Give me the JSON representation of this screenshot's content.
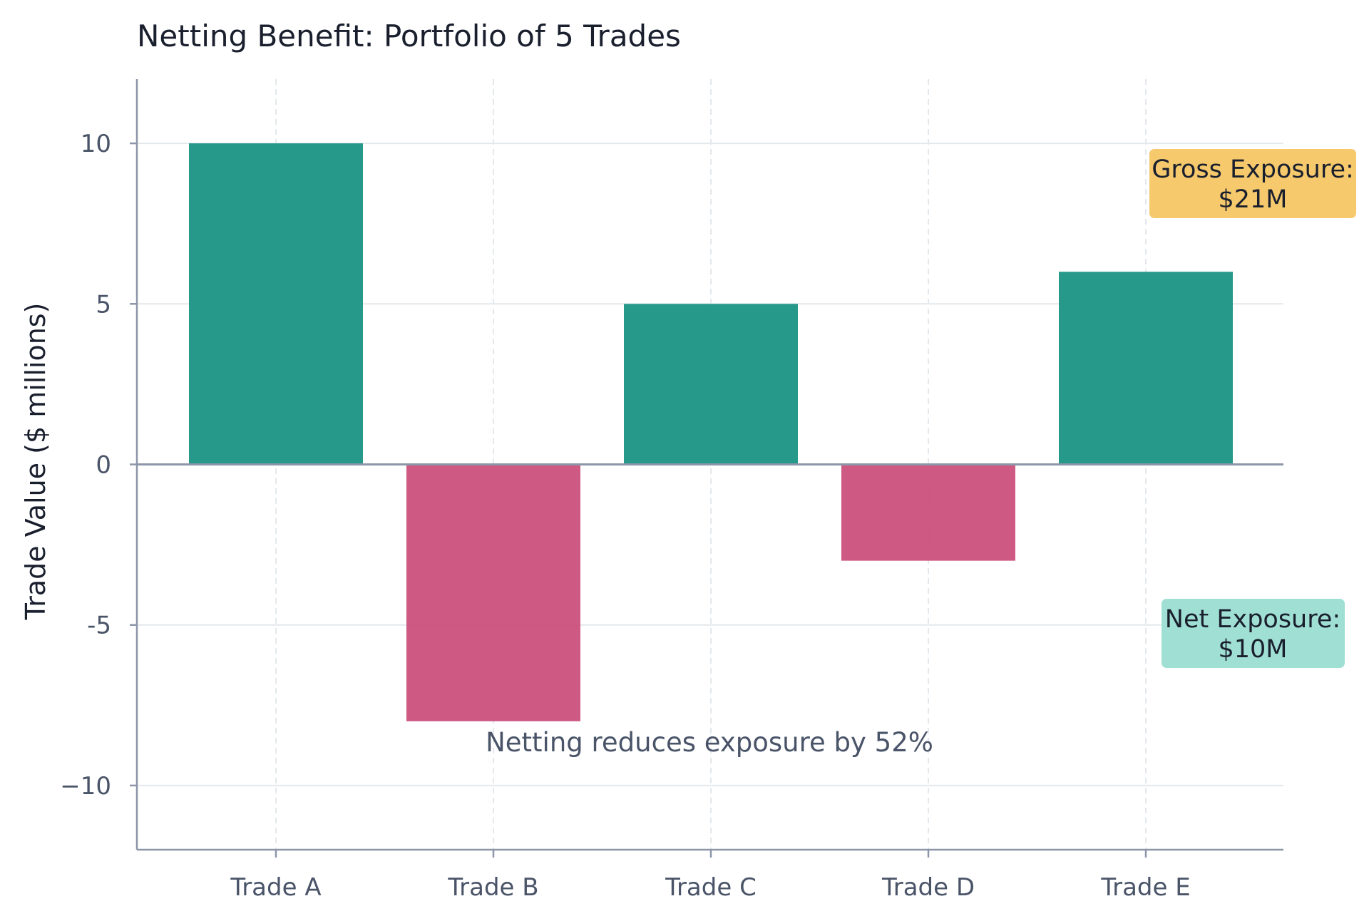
{
  "chart_data": {
    "type": "bar",
    "title": "Netting Benefit: Portfolio of 5 Trades",
    "xlabel": "",
    "ylabel": "Trade Value ($ millions)",
    "categories": [
      "Trade A",
      "Trade B",
      "Trade C",
      "Trade D",
      "Trade E"
    ],
    "values": [
      10,
      -8,
      5,
      -3,
      6
    ],
    "ylim": [
      -12,
      12
    ],
    "yticks": [
      -10,
      -5,
      0,
      5,
      10
    ],
    "ytick_labels": [
      "−10",
      "-5",
      "0",
      "5",
      "10"
    ],
    "grid": true,
    "colors": {
      "positive": "#1a9484",
      "negative": "#c94877",
      "gross_box": "#f5c96c",
      "net_box": "#a0e0d4",
      "axis": "#8c96a8",
      "grid": "#e3e8ec"
    },
    "annotations": {
      "gross_exposure": [
        "Gross Exposure:",
        "$21M"
      ],
      "net_exposure": [
        "Net Exposure:",
        "$10M"
      ],
      "netting_note": "Netting reduces exposure by 52%"
    }
  }
}
